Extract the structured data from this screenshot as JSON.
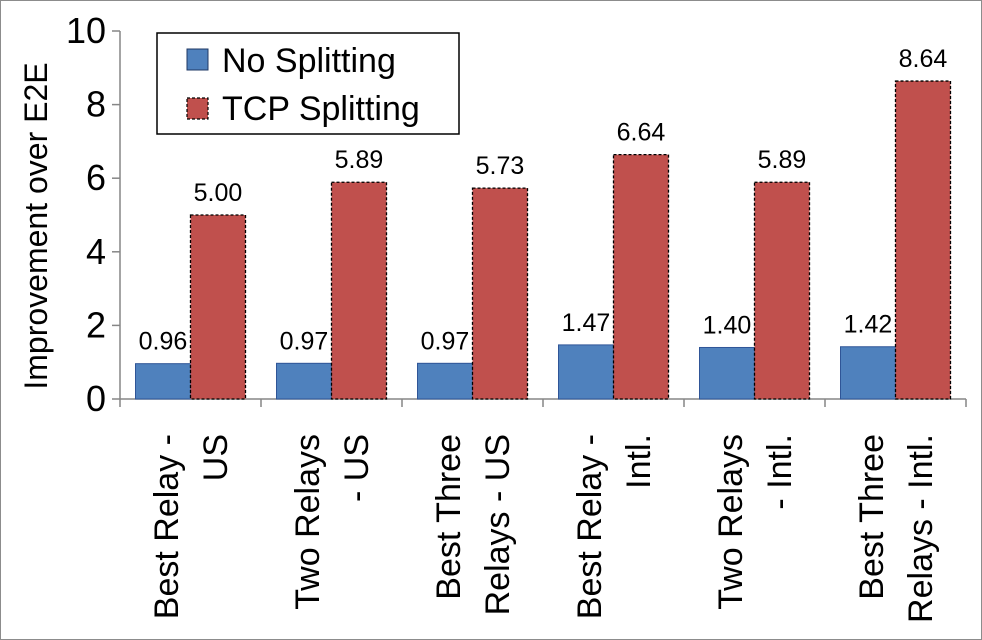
{
  "chart_data": {
    "type": "bar",
    "title": "",
    "ylabel": "Improvement over E2E",
    "xlabel": "",
    "ylim": [
      0,
      10
    ],
    "yticks": [
      0,
      2,
      4,
      6,
      8,
      10
    ],
    "grid": false,
    "legend_position": "top-left",
    "categories": [
      [
        "Best Relay -",
        "US"
      ],
      [
        "Two Relays",
        "- US"
      ],
      [
        "Best Three",
        "Relays - US"
      ],
      [
        "Best Relay -",
        "Intl."
      ],
      [
        "Two Relays",
        "- Intl."
      ],
      [
        "Best Three",
        "Relays - Intl."
      ]
    ],
    "series": [
      {
        "name": "No Splitting",
        "color": "#4f81bd",
        "values": [
          0.96,
          0.97,
          0.97,
          1.47,
          1.4,
          1.42
        ],
        "labels": [
          "0.96",
          "0.97",
          "0.97",
          "1.47",
          "1.40",
          "1.42"
        ]
      },
      {
        "name": "TCP Splitting",
        "color": "#c0504d",
        "values": [
          5.0,
          5.89,
          5.73,
          6.64,
          5.89,
          8.64
        ],
        "labels": [
          "5.00",
          "5.89",
          "5.73",
          "6.64",
          "5.89",
          "8.64"
        ]
      }
    ]
  }
}
